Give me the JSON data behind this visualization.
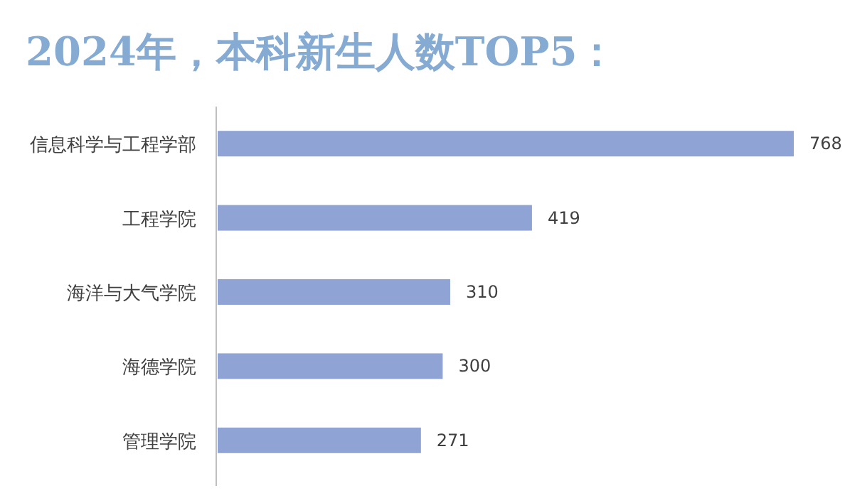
{
  "chart_data": {
    "type": "bar",
    "orientation": "horizontal",
    "title": "2024年，本科新生人数TOP5：",
    "categories": [
      "信息科学与工程学部",
      "工程学院",
      "海洋与大气学院",
      "海德学院",
      "管理学院"
    ],
    "values": [
      768,
      419,
      310,
      300,
      271
    ],
    "color": "#8fa3d4",
    "data_labels": true
  }
}
